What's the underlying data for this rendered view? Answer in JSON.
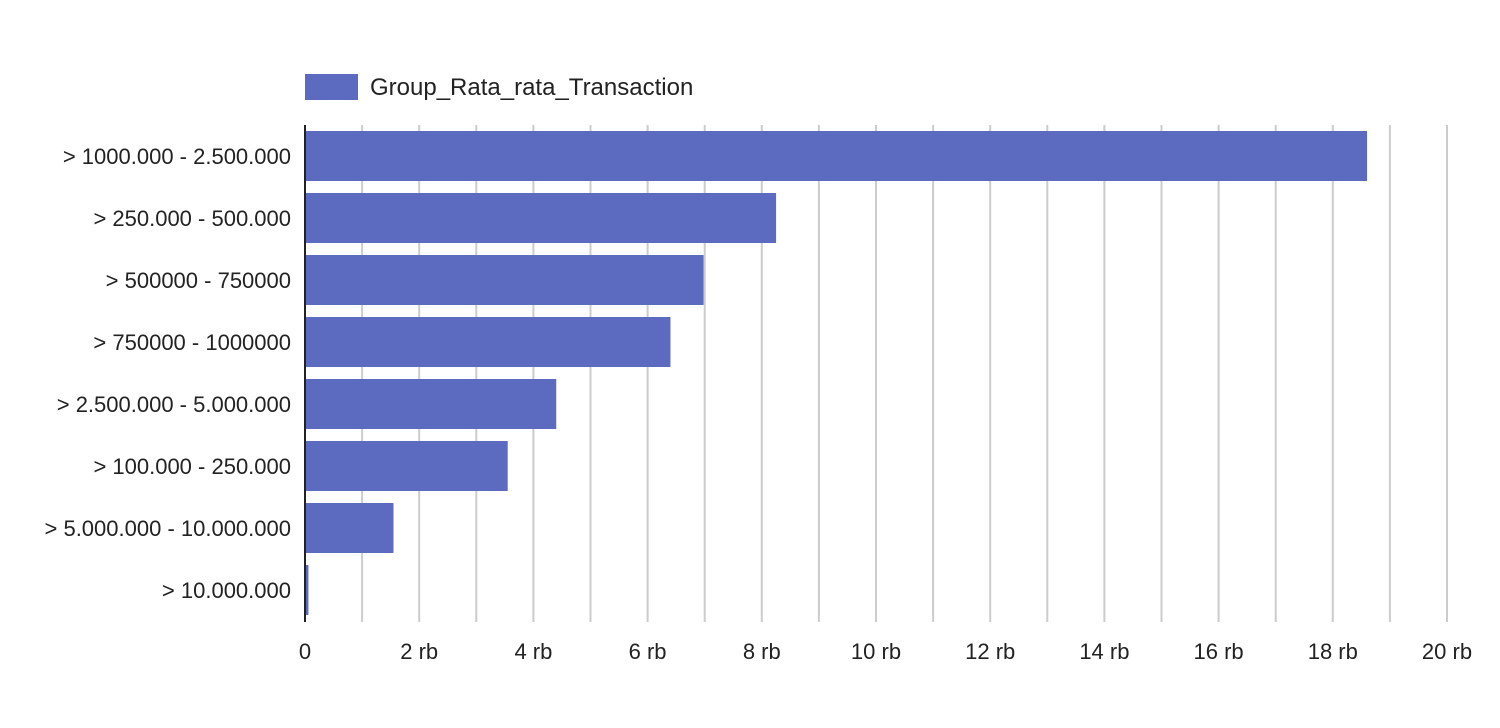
{
  "chart_data": {
    "type": "bar",
    "orientation": "horizontal",
    "categories": [
      "> 1000.000 - 2.500.000",
      "> 250.000 - 500.000",
      "> 500000 - 750000",
      "> 750000 - 1000000",
      "> 2.500.000 - 5.000.000",
      "> 100.000 - 250.000",
      "> 5.000.000 - 10.000.000",
      "> 10.000.000"
    ],
    "series": [
      {
        "name": "Group_Rata_rata_Transaction",
        "color": "#5c6bc0",
        "values": [
          18600,
          8250,
          6980,
          6400,
          4400,
          3550,
          1550,
          60
        ]
      }
    ],
    "xlim": [
      0,
      20000
    ],
    "x_ticks": [
      0,
      2000,
      4000,
      6000,
      8000,
      10000,
      12000,
      14000,
      16000,
      18000,
      20000
    ],
    "x_tick_labels": [
      "0",
      "2 rb",
      "4 rb",
      "6 rb",
      "8 rb",
      "10 rb",
      "12 rb",
      "14 rb",
      "16 rb",
      "18 rb",
      "20 rb"
    ],
    "minor_gridlines": true,
    "grid": true,
    "legend_position": "top-left",
    "title": "",
    "xlabel": "",
    "ylabel": ""
  }
}
